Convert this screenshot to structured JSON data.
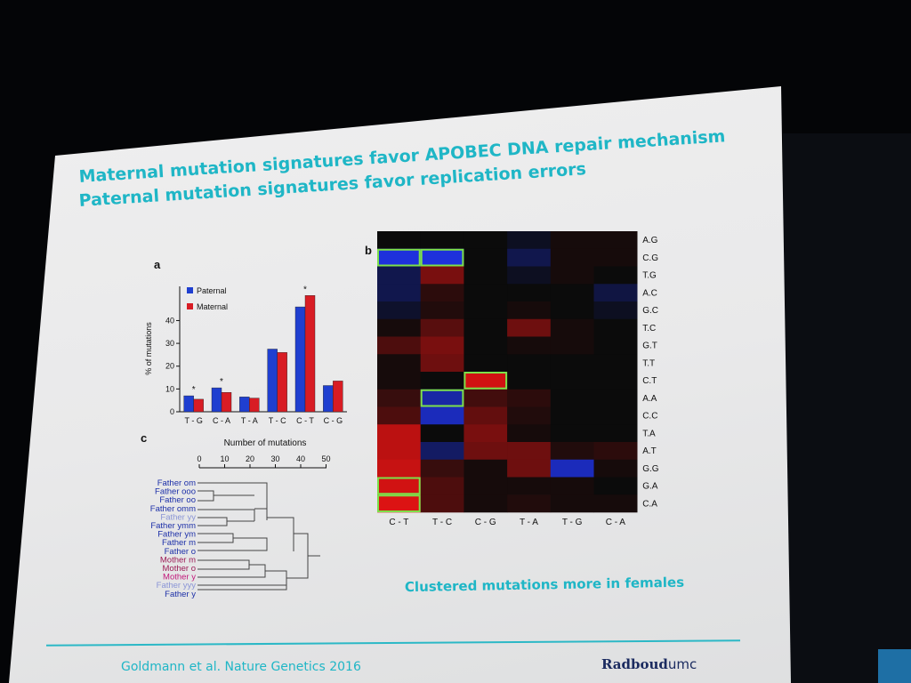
{
  "slide": {
    "heading_line1": {
      "pre": "Maternal mutation signatures favor ",
      "bold": "APOBEC DNA repair",
      "post": " mechanism"
    },
    "heading_line2": {
      "pre": "Paternal mutation signatures favor ",
      "bold": "replication errors",
      "post": ""
    },
    "caption": "Clustered mutations more in females",
    "citation": "Goldmann et al. Nature Genetics 2016",
    "logo": {
      "bold": "Radboud",
      "light": "umc"
    }
  },
  "chart_data": [
    {
      "type": "bar",
      "panel_label": "a",
      "categories": [
        "T - G",
        "C - A",
        "T - A",
        "T - C",
        "C - T",
        "C - G"
      ],
      "series": [
        {
          "name": "Paternal",
          "color": "#1f3fd0",
          "values": [
            7,
            10.5,
            6.5,
            27.5,
            46,
            11.5
          ]
        },
        {
          "name": "Maternal",
          "color": "#d81c24",
          "values": [
            5.5,
            8.5,
            6,
            26,
            51,
            13.5
          ]
        }
      ],
      "stars": [
        "*",
        "*",
        "",
        "",
        "*",
        ""
      ],
      "ylabel": "% of mutations",
      "yticks": [
        0,
        10,
        20,
        30,
        40
      ],
      "ylim": [
        0,
        55
      ],
      "legend_position": "top-left"
    },
    {
      "type": "dendrogram",
      "panel_label": "c",
      "xlabel": "Number of mutations",
      "xticks": [
        0,
        10,
        20,
        30,
        40,
        50
      ],
      "leaves": [
        {
          "label": "Father om",
          "color": "#1c2fa8"
        },
        {
          "label": "Father ooo",
          "color": "#1c2fa8"
        },
        {
          "label": "Father oo",
          "color": "#1c2fa8"
        },
        {
          "label": "Father omm",
          "color": "#1c2fa8"
        },
        {
          "label": "Father yy",
          "color": "#8a95d6"
        },
        {
          "label": "Father ymm",
          "color": "#1c2fa8"
        },
        {
          "label": "Father ym",
          "color": "#1c2fa8"
        },
        {
          "label": "Father m",
          "color": "#1c2fa8"
        },
        {
          "label": "Father o",
          "color": "#1c2fa8"
        },
        {
          "label": "Mother m",
          "color": "#9b1b55"
        },
        {
          "label": "Mother o",
          "color": "#9b1b55"
        },
        {
          "label": "Mother y",
          "color": "#c2197a"
        },
        {
          "label": "Father yyy",
          "color": "#8a95d6"
        },
        {
          "label": "Father y",
          "color": "#1c2fa8"
        }
      ]
    },
    {
      "type": "heatmap",
      "panel_label": "b",
      "columns": [
        "C - T",
        "T - C",
        "C - G",
        "T - A",
        "T - G",
        "C - A"
      ],
      "rows": [
        "A.G",
        "C.G",
        "T.G",
        "A.C",
        "G.C",
        "T.C",
        "G.T",
        "T.T",
        "C.T",
        "A.A",
        "C.C",
        "T.A",
        "A.T",
        "G.G",
        "G.A",
        "C.A"
      ],
      "values": [
        [
          0,
          0,
          0,
          -0.1,
          0.05,
          0.05
        ],
        [
          -0.95,
          -0.95,
          0,
          -0.3,
          0.05,
          0.05
        ],
        [
          -0.3,
          0.5,
          0,
          -0.1,
          0.05,
          0
        ],
        [
          -0.3,
          0.15,
          0,
          0,
          0,
          -0.25
        ],
        [
          -0.15,
          0.1,
          0,
          0.05,
          0,
          -0.1
        ],
        [
          0.05,
          0.35,
          0,
          0.45,
          0.05,
          0
        ],
        [
          0.3,
          0.5,
          0,
          0.05,
          0.05,
          0
        ],
        [
          0.05,
          0.45,
          0,
          0,
          0,
          0
        ],
        [
          0.05,
          0,
          0.9,
          0,
          0,
          0
        ],
        [
          0.2,
          -0.7,
          0.25,
          0.15,
          0,
          0
        ],
        [
          0.3,
          -0.8,
          0.4,
          0.1,
          0,
          0
        ],
        [
          0.8,
          0,
          0.5,
          0.05,
          0,
          0
        ],
        [
          0.8,
          -0.4,
          0.45,
          0.45,
          0.1,
          0.15
        ],
        [
          0.85,
          0.2,
          0.05,
          0.45,
          -0.8,
          0.05
        ],
        [
          0.9,
          0.3,
          0.05,
          0.05,
          0.05,
          0
        ],
        [
          0.95,
          0.3,
          0.05,
          0.1,
          0.05,
          0.05
        ]
      ],
      "highlighted_cells": [
        [
          1,
          0
        ],
        [
          1,
          1
        ],
        [
          8,
          2
        ],
        [
          9,
          1
        ],
        [
          14,
          0
        ],
        [
          15,
          0
        ]
      ],
      "highlight_color": "#7de04a",
      "positive_color": "#ff1a1a",
      "negative_color": "#2a3dff"
    }
  ]
}
